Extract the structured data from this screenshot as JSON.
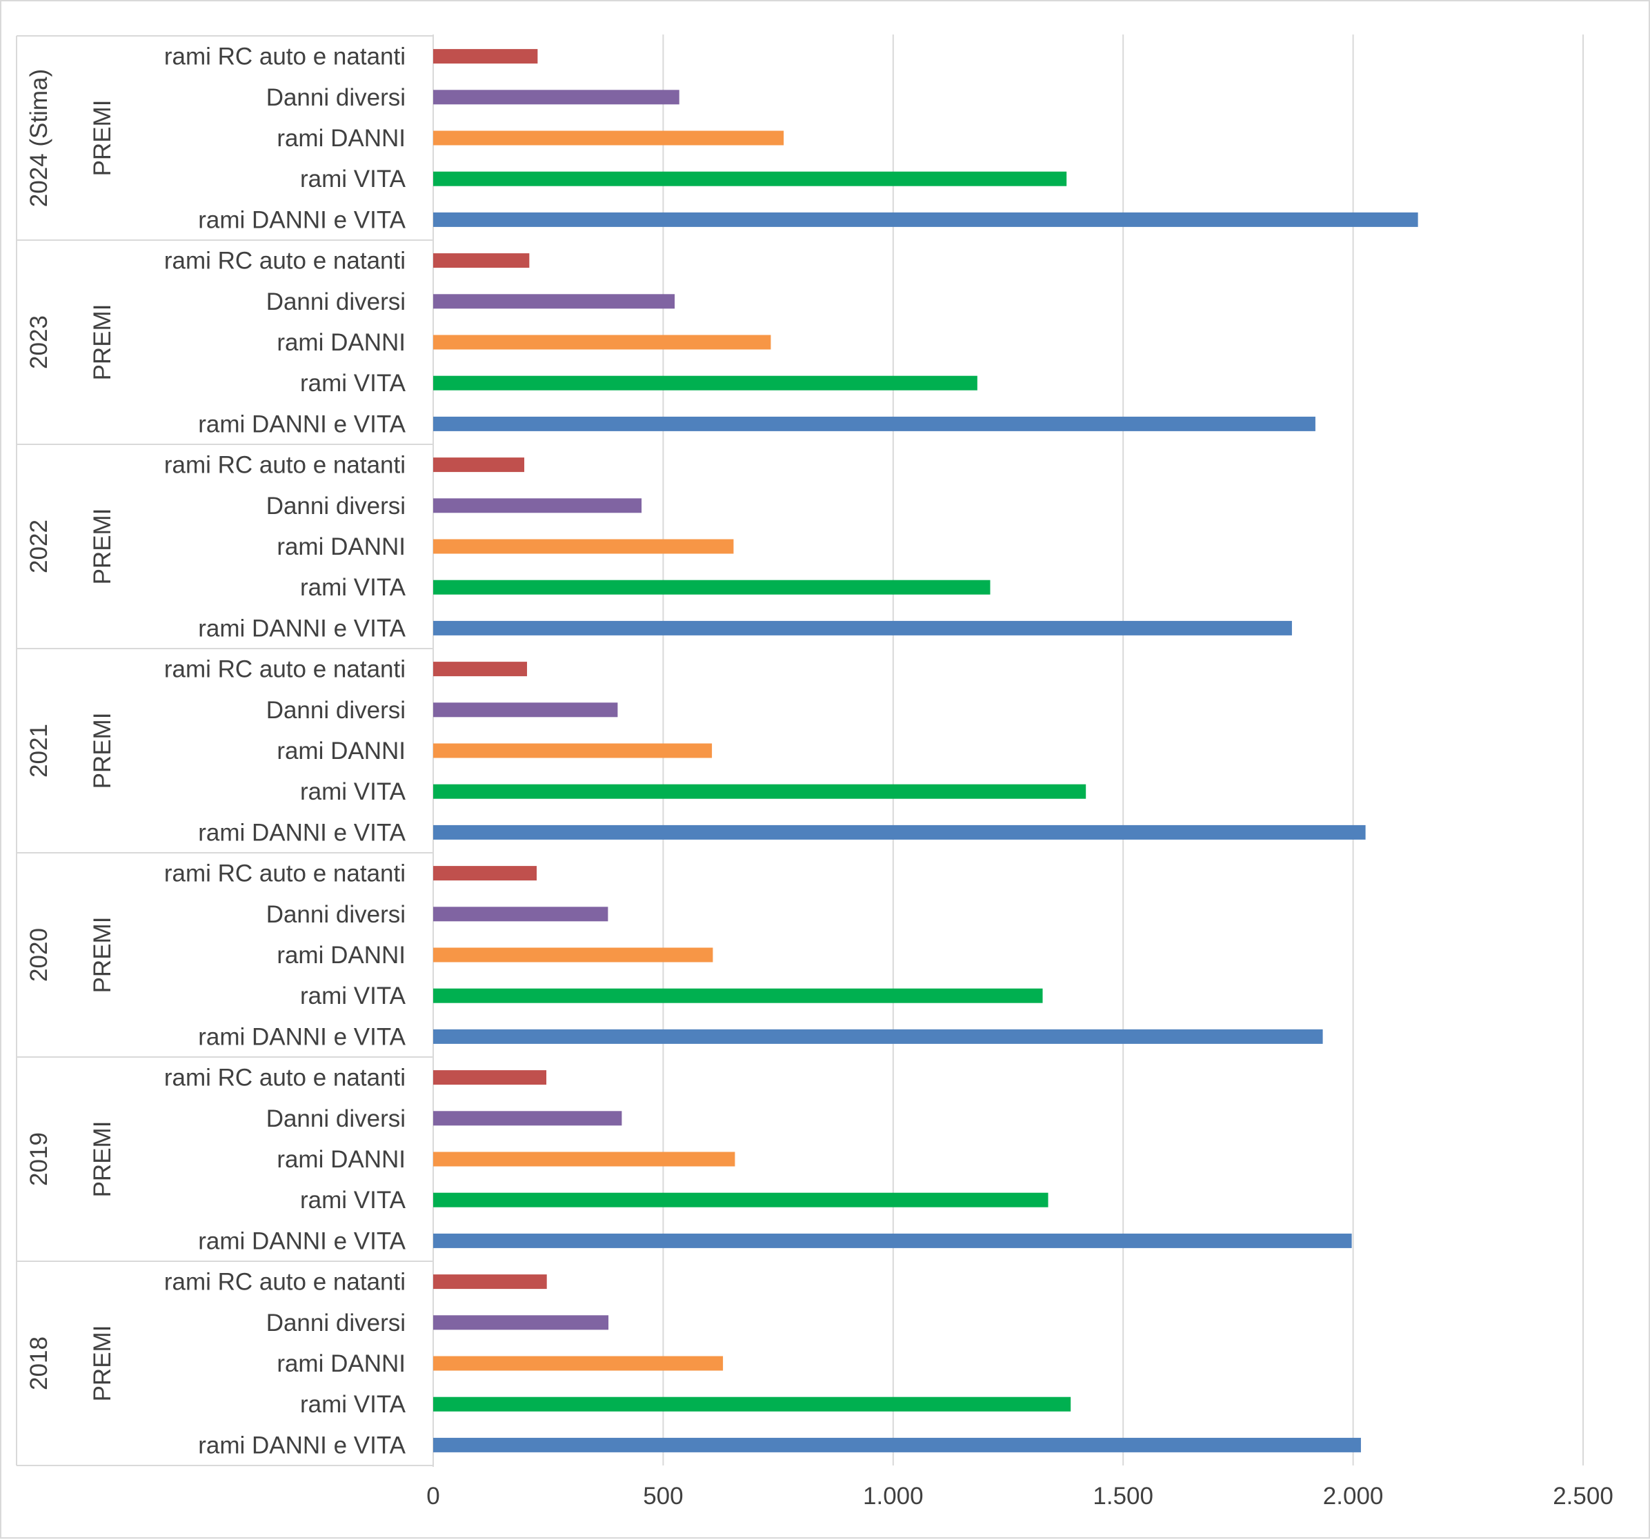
{
  "chart_data": {
    "type": "bar",
    "orientation": "horizontal",
    "grid": true,
    "xlim": [
      0,
      2500
    ],
    "x_ticks": [
      "0",
      "500",
      "1.000",
      "1.500",
      "2.000",
      "2.500"
    ],
    "x_tick_values": [
      0,
      500,
      1000,
      1500,
      2000,
      2500
    ],
    "categories": [
      "rami RC auto e natanti",
      "Danni diversi",
      "rami DANNI",
      "rami VITA",
      "rami DANNI e VITA"
    ],
    "colors": [
      "#c0504d",
      "#8064a2",
      "#f79646",
      "#00b050",
      "#4f81bd"
    ],
    "groups": [
      {
        "year": "2024 (Stima)",
        "subgroup": "PREMI",
        "values": [
          227,
          535,
          762,
          1377,
          2141
        ]
      },
      {
        "year": "2023",
        "subgroup": "PREMI",
        "values": [
          209,
          525,
          734,
          1183,
          1918
        ]
      },
      {
        "year": "2022",
        "subgroup": "PREMI",
        "values": [
          198,
          453,
          653,
          1211,
          1867
        ]
      },
      {
        "year": "2021",
        "subgroup": "PREMI",
        "values": [
          204,
          401,
          606,
          1419,
          2027
        ]
      },
      {
        "year": "2020",
        "subgroup": "PREMI",
        "values": [
          225,
          380,
          608,
          1325,
          1934
        ]
      },
      {
        "year": "2019",
        "subgroup": "PREMI",
        "values": [
          246,
          410,
          656,
          1337,
          1997
        ]
      },
      {
        "year": "2018",
        "subgroup": "PREMI",
        "values": [
          247,
          381,
          630,
          1386,
          2017
        ]
      }
    ]
  }
}
